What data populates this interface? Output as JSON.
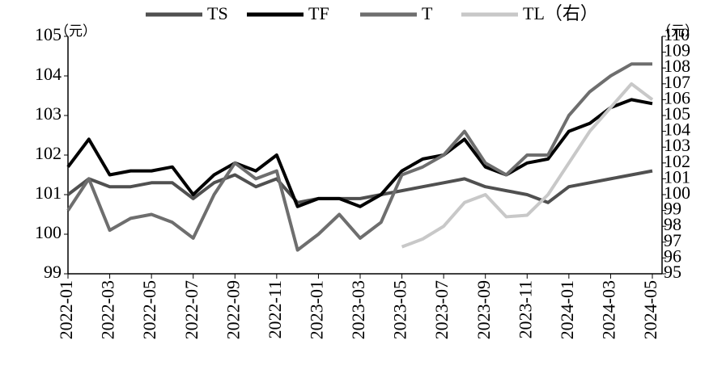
{
  "chart_data": {
    "type": "line",
    "x": [
      "2022-01",
      "2022-02",
      "2022-03",
      "2022-04",
      "2022-05",
      "2022-06",
      "2022-07",
      "2022-08",
      "2022-09",
      "2022-10",
      "2022-11",
      "2022-12",
      "2023-01",
      "2023-02",
      "2023-03",
      "2023-04",
      "2023-05",
      "2023-06",
      "2023-07",
      "2023-08",
      "2023-09",
      "2023-10",
      "2023-11",
      "2023-12",
      "2024-01",
      "2024-02",
      "2024-03",
      "2024-04",
      "2024-05"
    ],
    "xticks": [
      "2022-01",
      "2022-03",
      "2022-05",
      "2022-07",
      "2022-09",
      "2022-11",
      "2023-01",
      "2023-03",
      "2023-05",
      "2023-07",
      "2023-09",
      "2023-11",
      "2024-01",
      "2024-03",
      "2024-05"
    ],
    "y_unit": "（元）",
    "y2_unit": "（元）",
    "ylim": [
      99,
      105
    ],
    "yticks": [
      99,
      100,
      101,
      102,
      103,
      104,
      105
    ],
    "y2lim": [
      95,
      110
    ],
    "y2ticks": [
      95,
      96,
      97,
      98,
      99,
      100,
      101,
      102,
      103,
      104,
      105,
      106,
      107,
      108,
      109,
      110
    ],
    "legend": "top",
    "series": [
      {
        "name": "TS",
        "color": "#505050",
        "values": [
          101.0,
          101.4,
          101.2,
          101.2,
          101.3,
          101.3,
          100.9,
          101.3,
          101.5,
          101.2,
          101.4,
          100.8,
          100.9,
          100.9,
          100.9,
          101.0,
          101.1,
          101.2,
          101.3,
          101.4,
          101.2,
          101.1,
          101.0,
          100.8,
          101.2,
          101.3,
          101.4,
          101.5,
          101.6
        ]
      },
      {
        "name": "TF",
        "color": "#000000",
        "values": [
          101.7,
          102.4,
          101.5,
          101.6,
          101.6,
          101.7,
          101.0,
          101.5,
          101.8,
          101.6,
          102.0,
          100.7,
          100.9,
          100.9,
          100.7,
          101.0,
          101.6,
          101.9,
          102.0,
          102.4,
          101.7,
          101.5,
          101.8,
          101.9,
          102.6,
          102.8,
          103.2,
          103.4,
          103.3
        ]
      },
      {
        "name": "T",
        "color": "#6e6e6e",
        "values": [
          100.6,
          101.4,
          100.1,
          100.4,
          100.5,
          100.3,
          99.9,
          101.0,
          101.8,
          101.4,
          101.6,
          99.6,
          100.0,
          100.5,
          99.9,
          100.3,
          101.5,
          101.7,
          102.0,
          102.6,
          101.8,
          101.5,
          102.0,
          102.0,
          103.0,
          103.6,
          104.0,
          104.3,
          104.3
        ]
      },
      {
        "name": "TL（右）",
        "color": "#c8c8c8",
        "axis": "y2",
        "values": [
          null,
          null,
          null,
          null,
          null,
          null,
          null,
          null,
          null,
          null,
          null,
          null,
          null,
          null,
          null,
          null,
          96.7,
          97.2,
          98.0,
          99.5,
          100.0,
          98.6,
          98.7,
          100.0,
          102.0,
          104.0,
          105.5,
          107.0,
          106.0
        ]
      }
    ]
  }
}
